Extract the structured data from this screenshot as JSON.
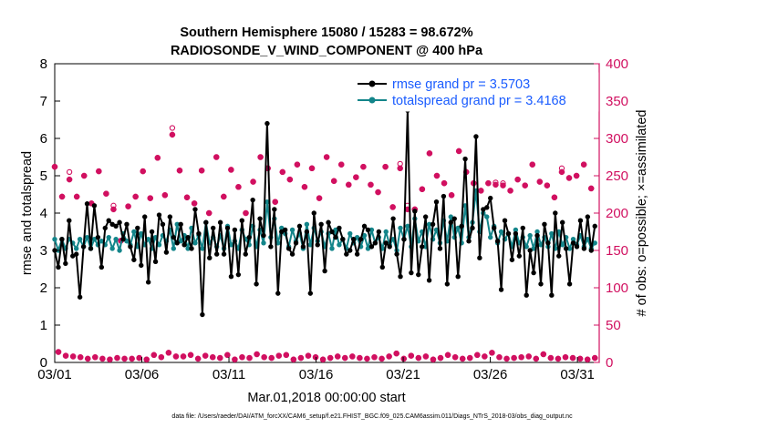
{
  "chart_data": {
    "type": "line",
    "title": "Southern Hemisphere 15080 / 15283 = 98.672%",
    "subtitle": "RADIOSONDE_V_WIND_COMPONENT @ 400 hPa",
    "xlabel": "Mar.01,2018 00:00:00 start",
    "ylabel": "rmse and totalspread",
    "y2label": "# of obs: o=possible; ×=assimilated",
    "footnote": "data file: /Users/raeder/DAI/ATM_forcXX/CAM6_setup/f.e21.FHIST_BGC.f09_025.CAM6assim.011/Diags_NTrS_2018-03/obs_diag_output.nc",
    "xlim": [
      0,
      31.25
    ],
    "ylim": [
      0,
      8
    ],
    "y2lim": [
      0,
      400
    ],
    "x_ticks": [
      0,
      5,
      10,
      15,
      20,
      25,
      30
    ],
    "x_tick_labels": [
      "03/01",
      "03/06",
      "03/11",
      "03/16",
      "03/21",
      "03/26",
      "03/31"
    ],
    "y_ticks": [
      0,
      1,
      2,
      3,
      4,
      5,
      6,
      7,
      8
    ],
    "y_tick_labels": [
      "0",
      "1",
      "2",
      "3",
      "4",
      "5",
      "6",
      "7",
      "8"
    ],
    "y2_ticks": [
      0,
      50,
      100,
      150,
      200,
      250,
      300,
      350,
      400
    ],
    "y2_tick_labels": [
      "0",
      "50",
      "100",
      "150",
      "200",
      "250",
      "300",
      "350",
      "400"
    ],
    "series": [
      {
        "name": "rmse grand pr = 3.5703",
        "axis": "left",
        "color": "#000000",
        "values": [
          3.0,
          2.55,
          3.3,
          2.65,
          3.8,
          2.85,
          2.9,
          1.75,
          3.1,
          4.25,
          3.05,
          4.2,
          3.35,
          2.55,
          3.6,
          3.8,
          3.7,
          3.65,
          3.75,
          3.3,
          3.7,
          3.1,
          2.75,
          3.6,
          2.6,
          3.9,
          2.15,
          3.5,
          2.7,
          3.95,
          3.7,
          2.95,
          3.9,
          3.35,
          3.2,
          3.7,
          3.15,
          3.35,
          3.05,
          4.1,
          3.45,
          1.28,
          3.75,
          2.8,
          3.6,
          2.9,
          3.75,
          2.9,
          3.6,
          2.3,
          3.55,
          2.35,
          3.8,
          2.9,
          3.35,
          4.35,
          2.1,
          3.85,
          3.4,
          6.4,
          3.1,
          4.1,
          1.85,
          3.5,
          3.55,
          3.05,
          2.9,
          3.2,
          3.65,
          3.1,
          3.5,
          1.85,
          4.0,
          3.15,
          3.7,
          2.45,
          3.75,
          3.5,
          3.35,
          3.6,
          3.3,
          2.9,
          3.0,
          3.3,
          2.9,
          3.3,
          3.65,
          3.55,
          3.1,
          3.2,
          3.5,
          2.55,
          3.2,
          3.1,
          3.85,
          2.9,
          2.3,
          3.3,
          6.75,
          2.4,
          4.05,
          2.35,
          3.1,
          3.9,
          2.2,
          3.7,
          4.3,
          3.05,
          4.45,
          2.1,
          3.75,
          3.85,
          2.3,
          3.65,
          5.45,
          3.25,
          3.6,
          6.05,
          2.8,
          4.1,
          4.15,
          4.4,
          3.6,
          3.25,
          1.95,
          3.8,
          3.45,
          2.75,
          3.45,
          2.85,
          3.6,
          1.8,
          3.0,
          2.4,
          3.4,
          2.1,
          3.7,
          3.2,
          1.8,
          4.0,
          2.85,
          3.75,
          3.05,
          2.1,
          3.2,
          3.1,
          3.8,
          3.05,
          3.9,
          3.0,
          3.65
        ]
      },
      {
        "name": "totalspread grand pr = 3.4168",
        "axis": "left",
        "color": "#13858a",
        "values": [
          3.3,
          3.0,
          3.3,
          3.05,
          3.3,
          3.2,
          3.05,
          3.3,
          3.1,
          3.35,
          3.05,
          3.3,
          3.15,
          3.25,
          3.15,
          3.35,
          3.05,
          3.3,
          3.0,
          3.45,
          3.25,
          3.15,
          3.5,
          3.1,
          3.45,
          3.15,
          3.3,
          3.05,
          3.35,
          3.15,
          3.4,
          3.25,
          3.55,
          3.05,
          3.7,
          3.25,
          3.4,
          3.05,
          3.6,
          3.2,
          3.4,
          3.05,
          3.75,
          3.2,
          3.35,
          3.1,
          3.4,
          3.05,
          3.65,
          3.15,
          3.25,
          3.05,
          3.55,
          3.3,
          3.15,
          3.65,
          3.1,
          3.55,
          3.2,
          4.3,
          3.35,
          3.85,
          3.2,
          3.6,
          3.45,
          3.1,
          3.55,
          3.25,
          3.45,
          3.05,
          3.7,
          3.15,
          3.6,
          3.25,
          3.5,
          3.1,
          3.45,
          3.05,
          3.55,
          3.15,
          3.3,
          3.05,
          3.45,
          3.2,
          3.35,
          3.1,
          3.4,
          3.05,
          3.55,
          3.2,
          3.35,
          3.05,
          3.5,
          3.15,
          3.3,
          3.0,
          3.6,
          3.3,
          3.65,
          3.1,
          3.85,
          3.25,
          3.5,
          3.1,
          3.7,
          3.3,
          3.55,
          3.2,
          3.8,
          3.25,
          3.9,
          3.35,
          3.6,
          3.2,
          4.2,
          3.35,
          3.75,
          4.6,
          3.5,
          4.0,
          3.9,
          3.35,
          3.65,
          3.2,
          3.5,
          3.3,
          3.45,
          3.1,
          3.55,
          3.2,
          3.35,
          3.1,
          3.4,
          3.05,
          3.5,
          3.15,
          3.35,
          3.1,
          3.45,
          3.05,
          3.5,
          3.15,
          3.35,
          3.05,
          3.3,
          3.15,
          3.4,
          3.1,
          3.3,
          3.05,
          3.2
        ]
      },
      {
        "name": "# obs possible",
        "axis": "right",
        "color": "#d11060",
        "marker": "circle",
        "values": [
          262,
          14,
          222,
          9,
          255,
          8,
          222,
          7,
          250,
          5,
          213,
          7,
          256,
          5,
          226,
          4,
          210,
          6,
          163,
          5,
          209,
          5,
          222,
          6,
          256,
          4,
          220,
          10,
          274,
          7,
          224,
          13,
          314,
          8,
          257,
          8,
          221,
          10,
          213,
          5,
          257,
          9,
          200,
          7,
          275,
          6,
          222,
          10,
          258,
          4,
          235,
          7,
          200,
          6,
          242,
          11,
          275,
          7,
          260,
          6,
          215,
          9,
          255,
          10,
          245,
          4,
          265,
          6,
          235,
          9,
          260,
          7,
          220,
          4,
          275,
          6,
          243,
          8,
          265,
          6,
          238,
          8,
          248,
          6,
          262,
          5,
          238,
          7,
          228,
          5,
          262,
          8,
          208,
          12,
          266,
          5,
          210,
          9,
          205,
          6,
          232,
          8,
          280,
          4,
          250,
          6,
          240,
          10,
          224,
          7,
          283,
          5,
          255,
          6,
          240,
          10,
          230,
          8,
          240,
          13,
          241,
          7,
          240,
          5,
          230,
          6,
          245,
          7,
          237,
          8,
          265,
          5,
          242,
          11,
          237,
          6,
          221,
          5,
          260,
          7,
          247,
          6,
          250,
          5,
          265,
          4,
          233,
          6
        ]
      },
      {
        "name": "# obs assimilated",
        "axis": "right",
        "color": "#d11060",
        "marker": "asterisk",
        "values": [
          262,
          14,
          222,
          9,
          245,
          8,
          222,
          7,
          250,
          5,
          213,
          7,
          256,
          5,
          226,
          4,
          205,
          6,
          163,
          5,
          209,
          5,
          222,
          6,
          256,
          4,
          220,
          10,
          274,
          7,
          224,
          13,
          305,
          8,
          257,
          8,
          221,
          10,
          213,
          5,
          257,
          9,
          200,
          7,
          275,
          6,
          222,
          10,
          258,
          4,
          235,
          7,
          200,
          6,
          242,
          11,
          275,
          7,
          260,
          6,
          215,
          9,
          255,
          10,
          245,
          4,
          265,
          6,
          235,
          9,
          260,
          7,
          220,
          4,
          275,
          6,
          243,
          8,
          265,
          6,
          238,
          8,
          248,
          6,
          262,
          5,
          238,
          7,
          228,
          5,
          262,
          8,
          208,
          12,
          260,
          5,
          205,
          9,
          205,
          6,
          232,
          8,
          280,
          4,
          250,
          6,
          240,
          10,
          224,
          7,
          283,
          5,
          255,
          6,
          240,
          10,
          230,
          8,
          240,
          13,
          238,
          7,
          237,
          5,
          230,
          6,
          245,
          7,
          237,
          8,
          265,
          5,
          242,
          11,
          237,
          6,
          221,
          5,
          255,
          7,
          247,
          6,
          250,
          5,
          265,
          4,
          233,
          6
        ]
      }
    ],
    "legend": {
      "placement": "top-right"
    }
  },
  "colors": {
    "rmse": "#000000",
    "spread": "#13858a",
    "obs": "#d11060",
    "legend_text": "#1a5cff"
  }
}
